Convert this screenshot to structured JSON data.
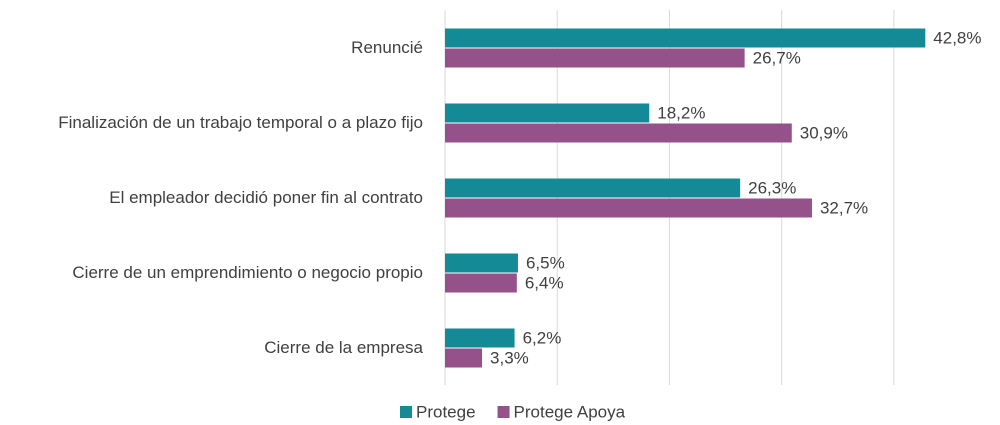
{
  "chart_data": {
    "type": "hbar",
    "categories": [
      "Renuncié",
      "Finalización de un trabajo temporal o a plazo fijo",
      "El empleador decidió poner fin al contrato",
      "Cierre de un emprendimiento o negocio propio",
      "Cierre de la empresa"
    ],
    "series": [
      {
        "name": "Protege",
        "color": "#138a95",
        "values": [
          42.8,
          18.2,
          26.3,
          6.5,
          6.2
        ],
        "value_labels": [
          "42,8%",
          "18,2%",
          "26,3%",
          "6,5%",
          "6,2%"
        ]
      },
      {
        "name": "Protege Apoya",
        "color": "#95518a",
        "values": [
          26.7,
          30.9,
          32.7,
          6.4,
          3.3
        ],
        "value_labels": [
          "26,7%",
          "30,9%",
          "32,7%",
          "6,4%",
          "3,3%"
        ]
      }
    ],
    "xlim": [
      0,
      45
    ],
    "xticks": [
      0,
      10,
      20,
      30,
      40
    ],
    "grid": true,
    "legend": "bottom"
  }
}
